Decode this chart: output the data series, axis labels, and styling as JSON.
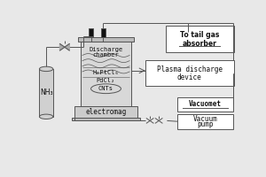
{
  "bg_color": "#e8e8e8",
  "lc": "#555555",
  "fc_chamber": "#d8d8d8",
  "fc_white": "#ffffff",
  "fc_dark": "#111111",
  "labels": {
    "nh3": "NH₃",
    "discharge": "Discharge",
    "chamber": "chamber",
    "h2ptcl6": "H₂PtCl₆",
    "pdcl2": "PdCl₂",
    "cnts": "CNTs",
    "electromag": "electromag",
    "tail_gas_1": "To tail gas",
    "tail_gas_2": "absorber",
    "plasma_1": "Plasma discharge",
    "plasma_2": "device",
    "vacuomet": "Vacuomet",
    "vacuum_1": "Vacuum",
    "vacuum_2": "pump"
  },
  "fs": 5.0,
  "lw": 0.7
}
